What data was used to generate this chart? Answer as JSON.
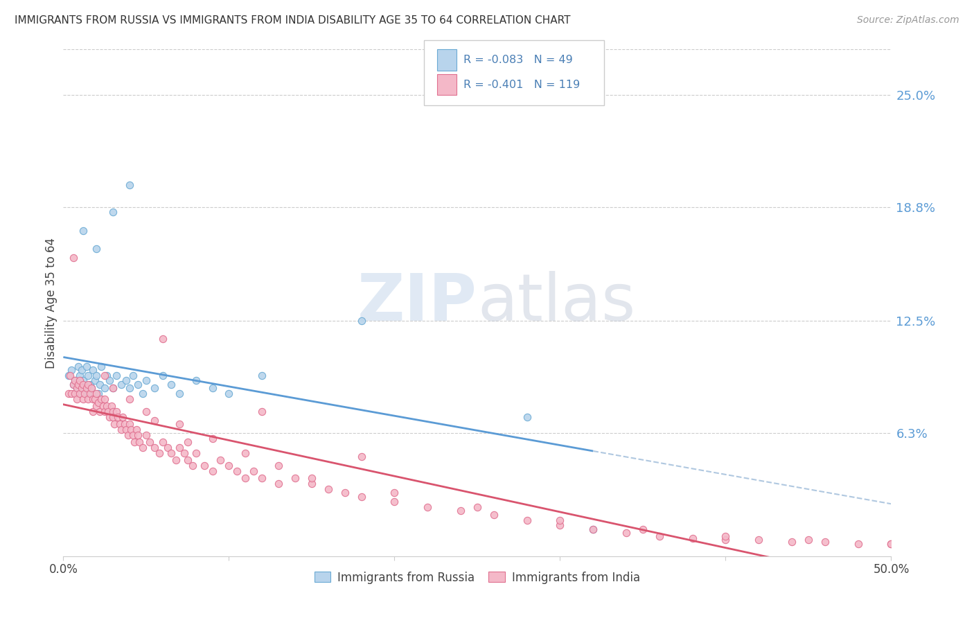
{
  "title": "IMMIGRANTS FROM RUSSIA VS IMMIGRANTS FROM INDIA DISABILITY AGE 35 TO 64 CORRELATION CHART",
  "source": "Source: ZipAtlas.com",
  "ylabel": "Disability Age 35 to 64",
  "ytick_values": [
    0.063,
    0.125,
    0.188,
    0.25
  ],
  "ytick_labels": [
    "6.3%",
    "12.5%",
    "18.8%",
    "25.0%"
  ],
  "xlim": [
    0.0,
    0.5
  ],
  "ylim": [
    -0.005,
    0.275
  ],
  "legend_russia": "Immigrants from Russia",
  "legend_india": "Immigrants from India",
  "R_russia": "-0.083",
  "N_russia": "49",
  "R_india": "-0.401",
  "N_india": "119",
  "color_russia_fill": "#b8d4ec",
  "color_russia_edge": "#6aaad4",
  "color_india_fill": "#f4b8c8",
  "color_india_edge": "#e07090",
  "color_russia_line": "#5b9bd5",
  "color_india_line": "#d9546e",
  "color_dashed": "#b0c8e0",
  "russia_x": [
    0.003,
    0.005,
    0.006,
    0.007,
    0.008,
    0.009,
    0.01,
    0.01,
    0.011,
    0.012,
    0.013,
    0.014,
    0.015,
    0.015,
    0.016,
    0.017,
    0.018,
    0.019,
    0.02,
    0.021,
    0.022,
    0.023,
    0.025,
    0.026,
    0.028,
    0.03,
    0.032,
    0.035,
    0.038,
    0.04,
    0.042,
    0.045,
    0.048,
    0.05,
    0.055,
    0.06,
    0.065,
    0.07,
    0.08,
    0.09,
    0.1,
    0.12,
    0.012,
    0.02,
    0.03,
    0.04,
    0.18,
    0.28,
    0.32
  ],
  "russia_y": [
    0.095,
    0.098,
    0.09,
    0.092,
    0.088,
    0.1,
    0.095,
    0.085,
    0.098,
    0.092,
    0.088,
    0.1,
    0.095,
    0.085,
    0.09,
    0.088,
    0.098,
    0.092,
    0.095,
    0.085,
    0.09,
    0.1,
    0.088,
    0.095,
    0.092,
    0.088,
    0.095,
    0.09,
    0.092,
    0.088,
    0.095,
    0.09,
    0.085,
    0.092,
    0.088,
    0.095,
    0.09,
    0.085,
    0.092,
    0.088,
    0.085,
    0.095,
    0.175,
    0.165,
    0.185,
    0.2,
    0.125,
    0.072,
    0.01
  ],
  "india_x": [
    0.003,
    0.004,
    0.005,
    0.006,
    0.007,
    0.007,
    0.008,
    0.008,
    0.009,
    0.01,
    0.01,
    0.011,
    0.012,
    0.012,
    0.013,
    0.014,
    0.015,
    0.015,
    0.016,
    0.017,
    0.018,
    0.018,
    0.019,
    0.02,
    0.02,
    0.021,
    0.022,
    0.023,
    0.024,
    0.025,
    0.025,
    0.026,
    0.027,
    0.028,
    0.029,
    0.03,
    0.03,
    0.031,
    0.032,
    0.033,
    0.034,
    0.035,
    0.036,
    0.037,
    0.038,
    0.039,
    0.04,
    0.041,
    0.042,
    0.043,
    0.044,
    0.045,
    0.046,
    0.048,
    0.05,
    0.052,
    0.055,
    0.058,
    0.06,
    0.063,
    0.065,
    0.068,
    0.07,
    0.073,
    0.075,
    0.078,
    0.08,
    0.085,
    0.09,
    0.095,
    0.1,
    0.105,
    0.11,
    0.115,
    0.12,
    0.13,
    0.14,
    0.15,
    0.16,
    0.17,
    0.18,
    0.2,
    0.22,
    0.24,
    0.26,
    0.28,
    0.3,
    0.32,
    0.34,
    0.36,
    0.38,
    0.4,
    0.42,
    0.44,
    0.46,
    0.48,
    0.5,
    0.006,
    0.06,
    0.12,
    0.18,
    0.03,
    0.05,
    0.07,
    0.09,
    0.11,
    0.13,
    0.15,
    0.2,
    0.25,
    0.3,
    0.35,
    0.4,
    0.45,
    0.5,
    0.025,
    0.04,
    0.055,
    0.075
  ],
  "india_y": [
    0.085,
    0.095,
    0.085,
    0.09,
    0.085,
    0.092,
    0.088,
    0.082,
    0.09,
    0.085,
    0.092,
    0.088,
    0.082,
    0.09,
    0.085,
    0.088,
    0.082,
    0.09,
    0.085,
    0.088,
    0.082,
    0.075,
    0.082,
    0.078,
    0.085,
    0.08,
    0.075,
    0.082,
    0.078,
    0.075,
    0.082,
    0.078,
    0.075,
    0.072,
    0.078,
    0.075,
    0.072,
    0.068,
    0.075,
    0.072,
    0.068,
    0.065,
    0.072,
    0.068,
    0.065,
    0.062,
    0.068,
    0.065,
    0.062,
    0.058,
    0.065,
    0.062,
    0.058,
    0.055,
    0.062,
    0.058,
    0.055,
    0.052,
    0.058,
    0.055,
    0.052,
    0.048,
    0.055,
    0.052,
    0.048,
    0.045,
    0.052,
    0.045,
    0.042,
    0.048,
    0.045,
    0.042,
    0.038,
    0.042,
    0.038,
    0.035,
    0.038,
    0.035,
    0.032,
    0.03,
    0.028,
    0.025,
    0.022,
    0.02,
    0.018,
    0.015,
    0.012,
    0.01,
    0.008,
    0.006,
    0.005,
    0.004,
    0.004,
    0.003,
    0.003,
    0.002,
    0.002,
    0.16,
    0.115,
    0.075,
    0.05,
    0.088,
    0.075,
    0.068,
    0.06,
    0.052,
    0.045,
    0.038,
    0.03,
    0.022,
    0.015,
    0.01,
    0.006,
    0.004,
    0.002,
    0.095,
    0.082,
    0.07,
    0.058
  ]
}
